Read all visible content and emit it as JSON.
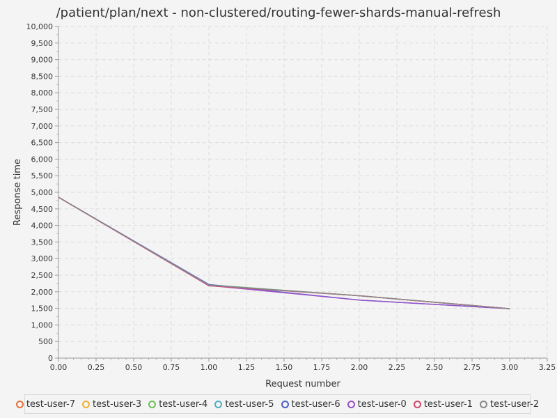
{
  "chart_data": {
    "type": "line",
    "title": "/patient/plan/next - non-clustered/routing-fewer-shards-manual-refresh",
    "xlabel": "Request number",
    "ylabel": "Response time",
    "xlim": [
      0,
      3.25
    ],
    "ylim": [
      0,
      10000
    ],
    "x_ticks": [
      "0.00",
      "0.25",
      "0.50",
      "0.75",
      "1.00",
      "1.25",
      "1.50",
      "1.75",
      "2.00",
      "2.25",
      "2.50",
      "2.75",
      "3.00",
      "3.25"
    ],
    "y_ticks": [
      "0",
      "500",
      "1,000",
      "1,500",
      "2,000",
      "2,500",
      "3,000",
      "3,500",
      "4,000",
      "4,500",
      "5,000",
      "5,500",
      "6,000",
      "6,500",
      "7,000",
      "7,500",
      "8,000",
      "8,500",
      "9,000",
      "9,500",
      "10,000"
    ],
    "grid": true,
    "legend_position": "bottom",
    "x": [
      0,
      1,
      2,
      3
    ],
    "series": [
      {
        "name": "test-user-7",
        "color": "#e8703a",
        "values": [
          4850,
          2190,
          1880,
          1490
        ]
      },
      {
        "name": "test-user-3",
        "color": "#f2b035",
        "values": [
          4850,
          2200,
          1880,
          1490
        ]
      },
      {
        "name": "test-user-4",
        "color": "#6cbf5a",
        "values": [
          4850,
          2210,
          1880,
          1490
        ]
      },
      {
        "name": "test-user-5",
        "color": "#4fb0c6",
        "values": [
          4850,
          2200,
          1880,
          1490
        ]
      },
      {
        "name": "test-user-6",
        "color": "#4a5fc9",
        "values": [
          4850,
          2220,
          1750,
          1490
        ]
      },
      {
        "name": "test-user-0",
        "color": "#9c4fc9",
        "values": [
          4850,
          2190,
          1750,
          1490
        ]
      },
      {
        "name": "test-user-1",
        "color": "#d04a6a",
        "values": [
          4850,
          2180,
          1880,
          1490
        ]
      },
      {
        "name": "test-user-2",
        "color": "#8a8a8a",
        "values": [
          4850,
          2200,
          1880,
          1490
        ]
      }
    ]
  }
}
